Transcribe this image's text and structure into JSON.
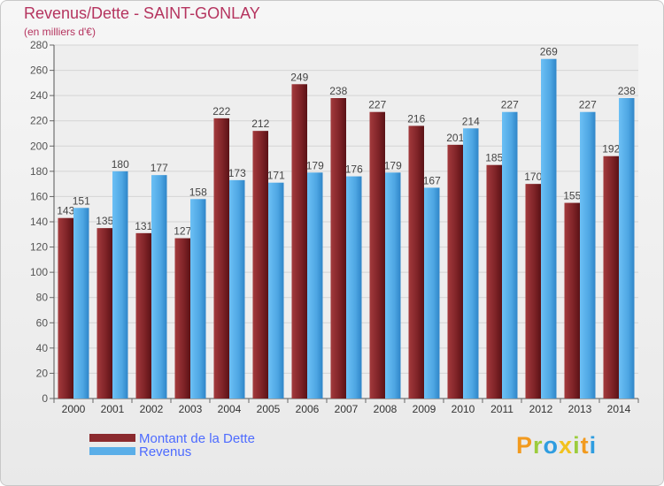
{
  "header": {
    "title": "Revenus/Dette - SAINT-GONLAY",
    "subtitle": "(en milliers d'€)"
  },
  "chart_data": {
    "type": "bar",
    "title": "Revenus/Dette - SAINT-GONLAY",
    "subtitle": "(en milliers d'€)",
    "xlabel": "",
    "ylabel": "",
    "categories": [
      "2000",
      "2001",
      "2002",
      "2003",
      "2004",
      "2005",
      "2006",
      "2007",
      "2008",
      "2009",
      "2010",
      "2011",
      "2012",
      "2013",
      "2014"
    ],
    "series": [
      {
        "name": "Montant de la Dette",
        "values": [
          143,
          135,
          131,
          127,
          222,
          212,
          249,
          238,
          227,
          216,
          201,
          185,
          170,
          155,
          192
        ],
        "color": "#8b2a2e"
      },
      {
        "name": "Revenus",
        "values": [
          151,
          180,
          177,
          158,
          173,
          171,
          179,
          176,
          179,
          167,
          214,
          227,
          269,
          227,
          238
        ],
        "color": "#5aaee8"
      }
    ],
    "ylim": [
      0,
      280
    ],
    "yticks": [
      0,
      20,
      40,
      60,
      80,
      100,
      120,
      140,
      160,
      180,
      200,
      220,
      240,
      260,
      280
    ],
    "grid": true,
    "legend_position": "bottom-left"
  },
  "legend": {
    "items": [
      {
        "label": "Montant de la Dette",
        "color": "#8b2a2e"
      },
      {
        "label": "Revenus",
        "color": "#5aaee8"
      }
    ]
  },
  "logo": {
    "text": "Proxiti",
    "letters": [
      {
        "ch": "P",
        "color": "#f29a1e"
      },
      {
        "ch": "r",
        "color": "#9ccc3d"
      },
      {
        "ch": "o",
        "color": "#2f9de0"
      },
      {
        "ch": "x",
        "color": "#f2c21e"
      },
      {
        "ch": "i",
        "color": "#9ccc3d"
      },
      {
        "ch": "t",
        "color": "#f29a1e"
      },
      {
        "ch": "i",
        "color": "#2f9de0"
      }
    ]
  }
}
